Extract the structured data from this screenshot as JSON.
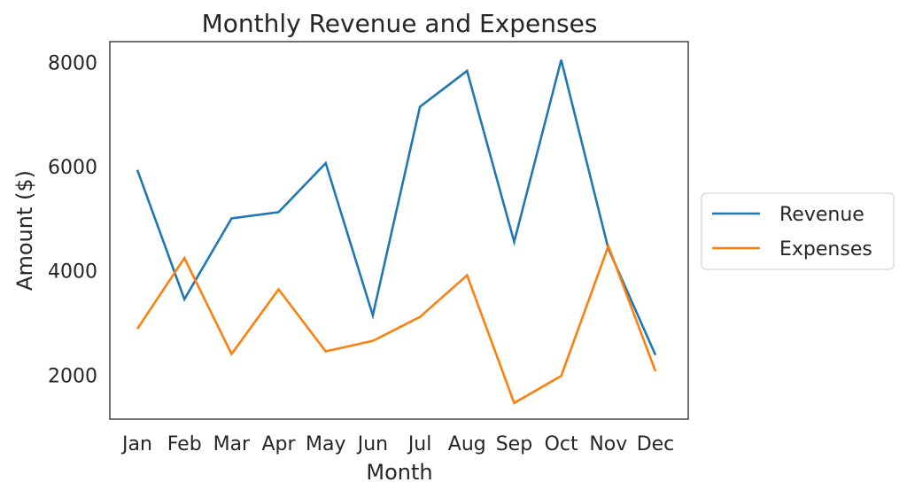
{
  "chart_data": {
    "type": "line",
    "title": "Monthly Revenue and Expenses",
    "xlabel": "Month",
    "ylabel": "Amount ($)",
    "categories": [
      "Jan",
      "Feb",
      "Mar",
      "Apr",
      "May",
      "Jun",
      "Jul",
      "Aug",
      "Sep",
      "Oct",
      "Nov",
      "Dec"
    ],
    "series": [
      {
        "name": "Revenue",
        "color": "#1f77b4",
        "values": [
          5920,
          3440,
          4990,
          5110,
          6050,
          3130,
          7130,
          7820,
          4540,
          8030,
          4410,
          2370
        ]
      },
      {
        "name": "Expenses",
        "color": "#ff7f0e",
        "values": [
          2870,
          4230,
          2390,
          3630,
          2440,
          2640,
          3100,
          3900,
          1450,
          1970,
          4460,
          2060
        ]
      }
    ],
    "yticks": [
      2000,
      4000,
      6000,
      8000
    ],
    "ylim": [
      1140,
      8380
    ],
    "grid": false,
    "legend_position": "outside-right"
  }
}
